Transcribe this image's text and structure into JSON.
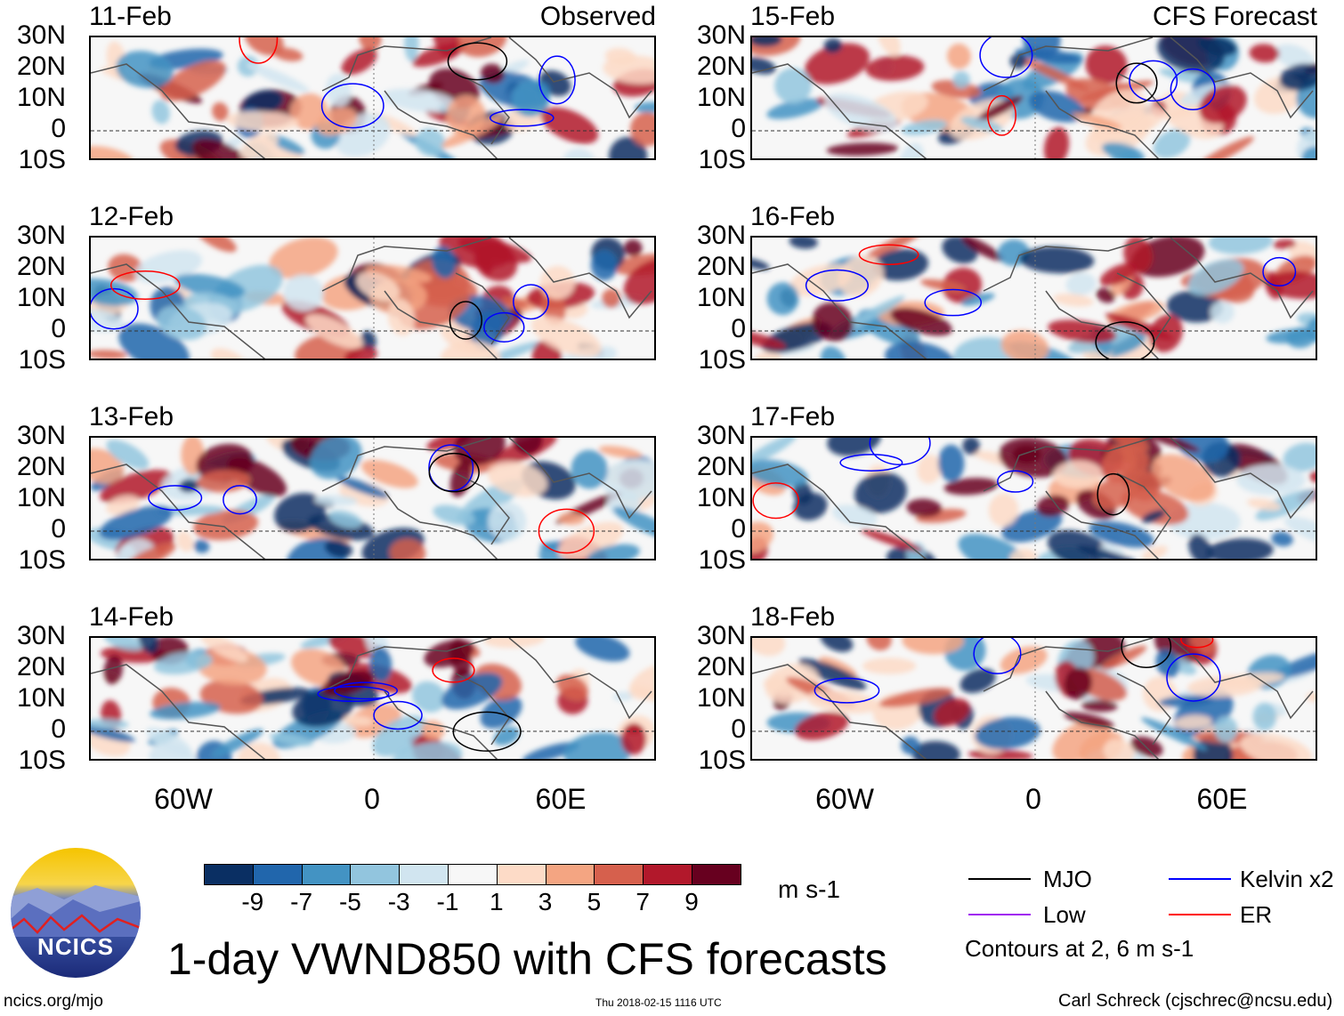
{
  "panels": [
    {
      "date": "11-Feb",
      "label": "Observed",
      "column": "left",
      "seed": 11
    },
    {
      "date": "12-Feb",
      "label": "",
      "column": "left",
      "seed": 12
    },
    {
      "date": "13-Feb",
      "label": "",
      "column": "left",
      "seed": 13
    },
    {
      "date": "14-Feb",
      "label": "",
      "column": "left",
      "seed": 14
    },
    {
      "date": "15-Feb",
      "label": "CFS Forecast",
      "column": "right",
      "seed": 15
    },
    {
      "date": "16-Feb",
      "label": "",
      "column": "right",
      "seed": 16
    },
    {
      "date": "17-Feb",
      "label": "",
      "column": "right",
      "seed": 17
    },
    {
      "date": "18-Feb",
      "label": "",
      "column": "right",
      "seed": 18
    }
  ],
  "lat_labels": [
    "30N",
    "20N",
    "10N",
    "0",
    "10S"
  ],
  "lon_labels": [
    "60W",
    "0",
    "60E"
  ],
  "colorbar": {
    "colors": [
      "#0a2f63",
      "#2166ac",
      "#4393c3",
      "#92c5de",
      "#d1e5f0",
      "#f7f7f7",
      "#fddbc7",
      "#f4a582",
      "#d6604d",
      "#b2182b",
      "#67001f"
    ],
    "ticks": [
      "-9",
      "-7",
      "-5",
      "-3",
      "-1",
      "1",
      "3",
      "5",
      "7",
      "9"
    ],
    "units": "m s-1"
  },
  "legend": {
    "items": [
      {
        "label": "MJO",
        "color": "#000000"
      },
      {
        "label": "Kelvin x2",
        "color": "#0000ff"
      },
      {
        "label": "Low",
        "color": "#a020f0"
      },
      {
        "label": "ER",
        "color": "#ff0000"
      }
    ],
    "contours_note": "Contours at 2, 6 m s-1"
  },
  "logo_text": "NCICS",
  "title": "1-day VWND850 with CFS forecasts",
  "footer": {
    "website": "ncics.org/mjo",
    "timestamp": "Thu 2018-02-15 1116 UTC",
    "author": "Carl Schreck (cjschrec@ncsu.edu)"
  }
}
